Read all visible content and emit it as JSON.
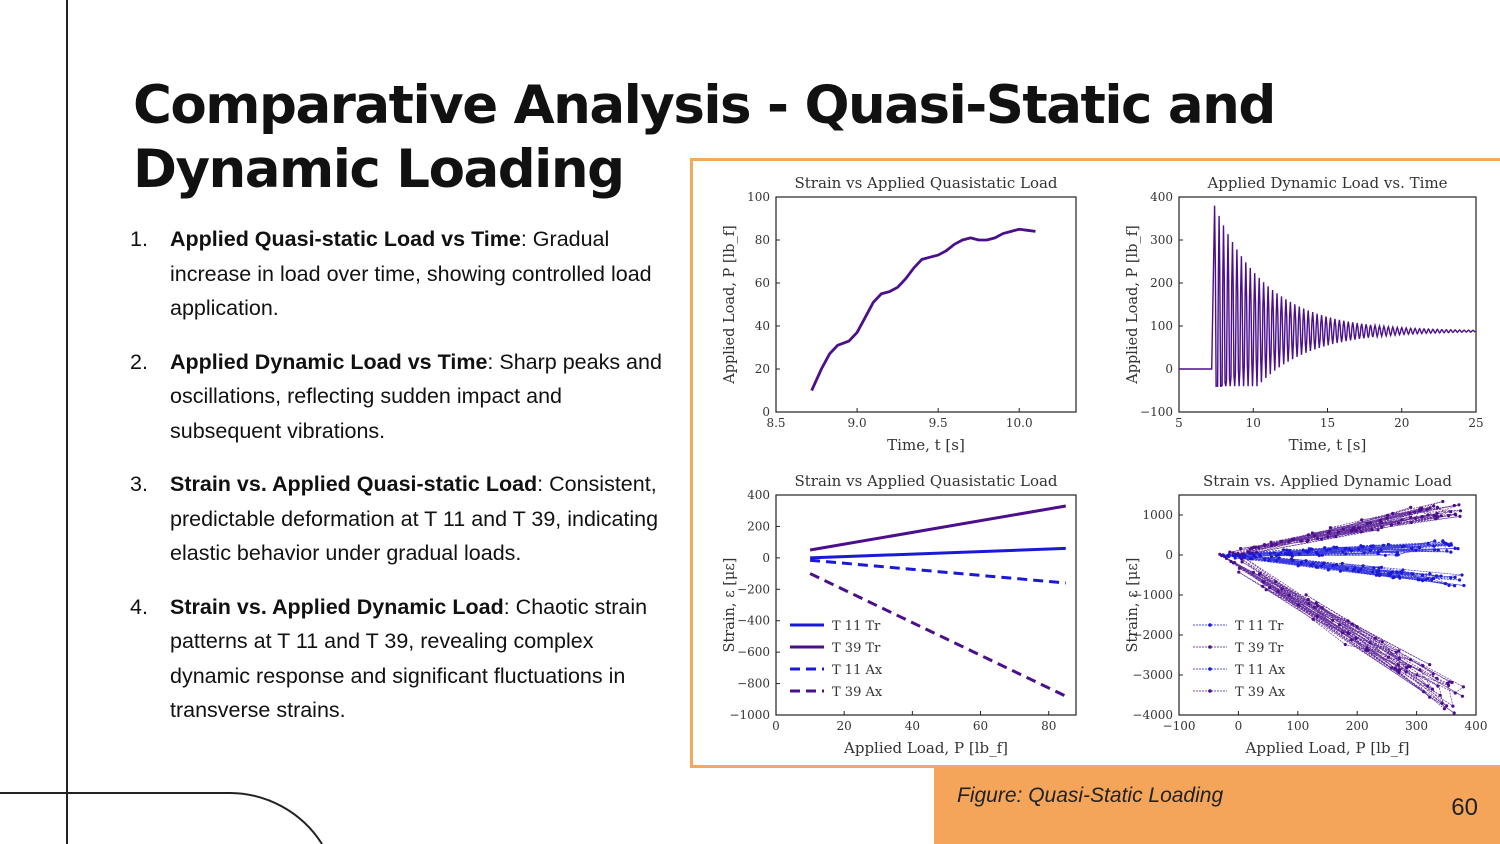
{
  "slide": {
    "title": "Comparative Analysis - Quasi-Static and Dynamic Loading",
    "caption": "Figure: Quasi-Static Loading",
    "page_number": "60",
    "bullets": [
      {
        "num": "1.",
        "bold": "Applied Quasi-static Load vs Time",
        "text": ": Gradual increase in load over time, showing controlled load application."
      },
      {
        "num": "2.",
        "bold": "Applied Dynamic Load vs Time",
        "text": ": Sharp peaks and oscillations, reflecting sudden impact and subsequent vibrations."
      },
      {
        "num": "3.",
        "bold": "Strain vs. Applied Quasi-static Load",
        "text": ": Consistent, predictable deformation at T 11 and T 39, indicating elastic behavior under gradual loads."
      },
      {
        "num": "4.",
        "bold": "Strain vs. Applied Dynamic Load",
        "text": ": Chaotic strain patterns at T 11 and T 39, revealing complex dynamic response and significant fluctuations in transverse strains."
      }
    ]
  },
  "colors": {
    "accent": "#f4a55a",
    "frame": "#f2a95b",
    "purple": "#4b0f8c",
    "blue": "#1a1ad6"
  },
  "chart_data": [
    {
      "type": "line",
      "title": "Strain vs Applied Quasistatic Load",
      "xlabel": "Time, t [s]",
      "ylabel": "Applied Load, P [lb_f]",
      "xlim": [
        8.5,
        10.35
      ],
      "ylim": [
        0,
        100
      ],
      "xticks": [
        8.5,
        9.0,
        9.5,
        10.0
      ],
      "xtick_labels": [
        "8.5",
        "9.0",
        "9.5",
        "10.0"
      ],
      "yticks": [
        0,
        20,
        40,
        60,
        80,
        100
      ],
      "ytick_labels": [
        "0",
        "20",
        "40",
        "60",
        "80",
        "100"
      ],
      "series": [
        {
          "color": "#4b0f8c",
          "x": [
            8.72,
            8.78,
            8.83,
            8.88,
            8.95,
            9.0,
            9.05,
            9.1,
            9.15,
            9.2,
            9.25,
            9.3,
            9.35,
            9.4,
            9.45,
            9.5,
            9.55,
            9.6,
            9.65,
            9.7,
            9.75,
            9.8,
            9.85,
            9.9,
            9.95,
            10.0,
            10.05,
            10.1
          ],
          "y": [
            10,
            20,
            27,
            31,
            33,
            37,
            44,
            51,
            55,
            56,
            58,
            62,
            67,
            71,
            72,
            73,
            75,
            78,
            80,
            81,
            80,
            80,
            81,
            83,
            84,
            85,
            84.5,
            84
          ]
        }
      ]
    },
    {
      "type": "line",
      "title": "Applied Dynamic Load vs. Time",
      "xlabel": "Time, t [s]",
      "ylabel": "Applied Load, P [lb_f]",
      "xlim": [
        5,
        25
      ],
      "ylim": [
        -100,
        400
      ],
      "xticks": [
        5,
        10,
        15,
        20,
        25
      ],
      "xtick_labels": [
        "5",
        "10",
        "15",
        "20",
        "25"
      ],
      "yticks": [
        -100,
        0,
        100,
        200,
        300,
        400
      ],
      "ytick_labels": [
        "−100",
        "0",
        "100",
        "200",
        "300",
        "400"
      ],
      "series": [
        {
          "color": "#4b0f8c",
          "pre_level": 0,
          "step_time": 7.4,
          "peak_first": 380,
          "trough_first": -40,
          "settle_level": 88,
          "period_s": 0.3,
          "decay_s": 3.5,
          "end_time": 25
        }
      ]
    },
    {
      "type": "line",
      "title": "Strain vs Applied Quasistatic Load",
      "xlabel": "Applied Load, P [lb_f]",
      "ylabel": "Strain, ε [με]",
      "xlim": [
        0,
        88
      ],
      "ylim": [
        -1000,
        400
      ],
      "xticks": [
        0,
        20,
        40,
        60,
        80
      ],
      "xtick_labels": [
        "0",
        "20",
        "40",
        "60",
        "80"
      ],
      "yticks": [
        -1000,
        -800,
        -600,
        -400,
        -200,
        0,
        200,
        400
      ],
      "ytick_labels": [
        "−1000",
        "−800",
        "−600",
        "−400",
        "−200",
        "0",
        "200",
        "400"
      ],
      "legend_position": "bottom-left",
      "series": [
        {
          "name": "T 11 Tr",
          "color": "#1a1ad6",
          "dash": false,
          "x": [
            10,
            85
          ],
          "y": [
            0,
            60
          ]
        },
        {
          "name": "T 39 Tr",
          "color": "#4b0f8c",
          "dash": false,
          "x": [
            10,
            85
          ],
          "y": [
            50,
            330
          ]
        },
        {
          "name": "T 11 Ax",
          "color": "#1a1ad6",
          "dash": true,
          "x": [
            10,
            85
          ],
          "y": [
            -15,
            -160
          ]
        },
        {
          "name": "T 39 Ax",
          "color": "#4b0f8c",
          "dash": true,
          "x": [
            10,
            85
          ],
          "y": [
            -100,
            -880
          ]
        }
      ]
    },
    {
      "type": "scatter",
      "title": "Strain vs. Applied Dynamic Load",
      "xlabel": "Applied Load, P [lb_f]",
      "ylabel": "Strain, ε [με]",
      "xlim": [
        -100,
        400
      ],
      "ylim": [
        -4000,
        1500
      ],
      "xticks": [
        -100,
        0,
        100,
        200,
        300,
        400
      ],
      "xtick_labels": [
        "−100",
        "0",
        "100",
        "200",
        "300",
        "400"
      ],
      "yticks": [
        -4000,
        -3000,
        -2000,
        -1000,
        0,
        1000
      ],
      "ytick_labels": [
        "−4000",
        "−3000",
        "−2000",
        "−1000",
        "0",
        "1000"
      ],
      "legend_position": "bottom-left",
      "series": [
        {
          "name": "T 11 Tr",
          "color": "#1a1ad6",
          "trend": [
            [
              -20,
              0
            ],
            [
              380,
              200
            ]
          ],
          "spread": 150
        },
        {
          "name": "T 39 Tr",
          "color": "#4b0f8c",
          "trend": [
            [
              -20,
              0
            ],
            [
              380,
              1250
            ]
          ],
          "spread": 200
        },
        {
          "name": "T 11 Ax",
          "color": "#1a1ad6",
          "trend": [
            [
              -20,
              0
            ],
            [
              380,
              -650
            ]
          ],
          "spread": 120
        },
        {
          "name": "T 39 Ax",
          "color": "#4b0f8c",
          "trend": [
            [
              -20,
              0
            ],
            [
              380,
              -3700
            ]
          ],
          "spread": 350
        }
      ]
    }
  ]
}
